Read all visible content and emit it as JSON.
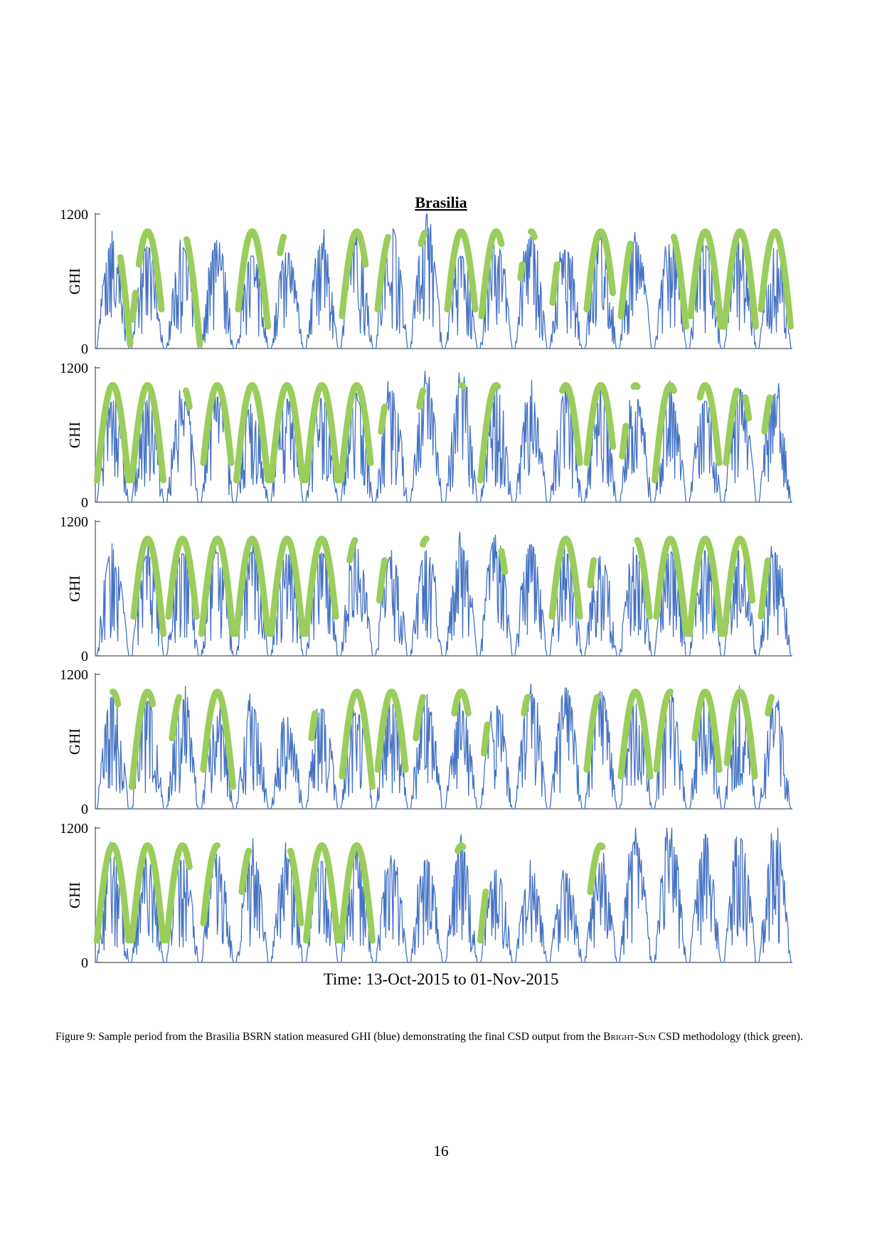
{
  "figure": {
    "title": "Brasilia",
    "xlabel": "Time: 13-Oct-2015 to 01-Nov-2015",
    "colors": {
      "ghi": "#4472C4",
      "csd": "#9ACD5C",
      "axis": "#555555"
    }
  },
  "caption": {
    "label": "Figure 9:",
    "text_before": "Sample period from the Brasilia BSRN station measured GHI (blue) demonstrating the final CSD output from the",
    "method_name": "Bright-Sun",
    "text_after": "CSD methodology (thick green)."
  },
  "page_number": "16",
  "chart_data": [
    {
      "type": "line",
      "ylabel": "GHI",
      "ylim": [
        0,
        1200
      ],
      "yticks": [
        0,
        1200
      ],
      "grid": false,
      "days": 20,
      "series_names": [
        "measured GHI",
        "CSD output"
      ],
      "day_peaks": [
        1020,
        970,
        960,
        1030,
        880,
        920,
        1000,
        990,
        1150,
        1170,
        880,
        1010,
        1060,
        940,
        1040,
        1020,
        1000,
        980,
        1010,
        960
      ],
      "csd_days": [
        {
          "spans": [
            [
              0.72,
              1
            ]
          ]
        },
        {
          "spans": [
            [
              0.07,
              0.15
            ],
            [
              0.25,
              0.9
            ]
          ]
        },
        {
          "spans": [
            [
              0.62,
              1
            ]
          ]
        },
        {
          "spans": []
        },
        {
          "spans": [
            [
              0.1,
              0.95
            ]
          ]
        },
        {
          "spans": [
            [
              0.3,
              0.4
            ]
          ]
        },
        {
          "spans": []
        },
        {
          "spans": [
            [
              0.08,
              0.75
            ]
          ]
        },
        {
          "spans": [
            [
              0.1,
              0.4
            ]
          ]
        },
        {
          "spans": [
            [
              0.35,
              0.45
            ]
          ]
        },
        {
          "spans": [
            [
              0.1,
              0.9
            ]
          ]
        },
        {
          "spans": [
            [
              0.08,
              0.65
            ]
          ]
        },
        {
          "spans": [
            [
              0.2,
              0.25
            ],
            [
              0.5,
              0.6
            ]
          ]
        },
        {
          "spans": [
            [
              0.12,
              0.25
            ]
          ]
        },
        {
          "spans": [
            [
              0.1,
              0.85
            ]
          ]
        },
        {
          "spans": [
            [
              0.08,
              0.35
            ]
          ]
        },
        {
          "spans": [
            [
              0.6,
              0.95
            ]
          ]
        },
        {
          "spans": [
            [
              0.08,
              0.95
            ]
          ]
        },
        {
          "spans": [
            [
              0.05,
              0.95
            ]
          ]
        },
        {
          "spans": [
            [
              0.1,
              0.95
            ]
          ]
        }
      ]
    },
    {
      "type": "line",
      "ylabel": "GHI",
      "ylim": [
        0,
        1200
      ],
      "yticks": [
        0,
        1200
      ],
      "grid": false,
      "days": 20,
      "series_names": [
        "measured GHI",
        "CSD output"
      ],
      "day_peaks": [
        960,
        970,
        980,
        1000,
        940,
        980,
        990,
        970,
        1060,
        1130,
        1120,
        990,
        1010,
        1050,
        980,
        1000,
        990,
        960,
        1070,
        1030
      ],
      "csd_days": [
        {
          "spans": [
            [
              0.05,
              0.95
            ]
          ]
        },
        {
          "spans": [
            [
              0.05,
              0.95
            ]
          ]
        },
        {
          "spans": [
            [
              0.6,
              0.7
            ]
          ]
        },
        {
          "spans": [
            [
              0.1,
              0.9
            ]
          ]
        },
        {
          "spans": [
            [
              0.05,
              0.95
            ]
          ]
        },
        {
          "spans": [
            [
              0.05,
              0.95
            ]
          ]
        },
        {
          "spans": [
            [
              0.05,
              0.95
            ]
          ]
        },
        {
          "spans": [
            [
              0.05,
              0.9
            ]
          ]
        },
        {
          "spans": [
            [
              0.2,
              0.3
            ]
          ]
        },
        {
          "spans": [
            [
              0.3,
              0.4
            ]
          ]
        },
        {
          "spans": [
            [
              0.5,
              0.55
            ]
          ]
        },
        {
          "spans": [
            [
              0.05,
              0.55
            ]
          ]
        },
        {
          "spans": []
        },
        {
          "spans": [
            [
              0.4,
              0.9
            ]
          ]
        },
        {
          "spans": [
            [
              0.1,
              0.85
            ]
          ]
        },
        {
          "spans": [
            [
              0.12,
              0.22
            ],
            [
              0.45,
              0.55
            ]
          ]
        },
        {
          "spans": [
            [
              0.05,
              0.6
            ]
          ]
        },
        {
          "spans": [
            [
              0.35,
              0.9
            ]
          ]
        },
        {
          "spans": [
            [
              0.1,
              0.4
            ],
            [
              0.65,
              0.75
            ]
          ]
        },
        {
          "spans": [
            [
              0.2,
              0.35
            ]
          ]
        }
      ]
    },
    {
      "type": "line",
      "ylabel": "GHI",
      "ylim": [
        0,
        1200
      ],
      "yticks": [
        0,
        1200
      ],
      "grid": false,
      "days": 20,
      "series_names": [
        "measured GHI",
        "CSD output"
      ],
      "day_peaks": [
        1010,
        960,
        970,
        980,
        990,
        970,
        980,
        1020,
        950,
        1000,
        1030,
        1150,
        1060,
        980,
        950,
        960,
        990,
        1000,
        1010,
        980
      ],
      "csd_days": [
        {
          "spans": []
        },
        {
          "spans": [
            [
              0.1,
              0.95
            ]
          ]
        },
        {
          "spans": [
            [
              0.1,
              0.9
            ]
          ]
        },
        {
          "spans": [
            [
              0.05,
              0.95
            ]
          ]
        },
        {
          "spans": [
            [
              0.05,
              0.95
            ]
          ]
        },
        {
          "spans": [
            [
              0.05,
              0.95
            ]
          ]
        },
        {
          "spans": [
            [
              0.05,
              0.9
            ]
          ]
        },
        {
          "spans": [
            [
              0.3,
              0.45
            ]
          ]
        },
        {
          "spans": [
            [
              0.15,
              0.3
            ]
          ]
        },
        {
          "spans": [
            [
              0.4,
              0.5
            ]
          ]
        },
        {
          "spans": []
        },
        {
          "spans": [
            [
              0.65,
              0.75
            ]
          ]
        },
        {
          "spans": []
        },
        {
          "spans": [
            [
              0.1,
              0.9
            ]
          ]
        },
        {
          "spans": [
            [
              0.2,
              0.3
            ]
          ]
        },
        {
          "spans": [
            [
              0.55,
              0.9
            ]
          ]
        },
        {
          "spans": [
            [
              0.1,
              0.95
            ]
          ]
        },
        {
          "spans": [
            [
              0.05,
              0.95
            ]
          ]
        },
        {
          "spans": [
            [
              0.05,
              0.85
            ]
          ]
        },
        {
          "spans": [
            [
              0.1,
              0.3
            ]
          ]
        }
      ]
    },
    {
      "type": "line",
      "ylabel": "GHI",
      "ylim": [
        0,
        1200
      ],
      "yticks": [
        0,
        1200
      ],
      "grid": false,
      "days": 20,
      "series_names": [
        "measured GHI",
        "CSD output"
      ],
      "day_peaks": [
        1070,
        1020,
        1040,
        880,
        970,
        820,
        950,
        920,
        1000,
        980,
        940,
        980,
        1100,
        1150,
        1120,
        1000,
        1040,
        1070,
        1060,
        980
      ],
      "csd_days": [
        {
          "spans": [
            [
              0.5,
              0.65
            ]
          ]
        },
        {
          "spans": [
            [
              0.05,
              0.65
            ]
          ]
        },
        {
          "spans": [
            [
              0.2,
              0.4
            ]
          ]
        },
        {
          "spans": [
            [
              0.1,
              0.95
            ]
          ]
        },
        {
          "spans": []
        },
        {
          "spans": []
        },
        {
          "spans": [
            [
              0.2,
              0.3
            ]
          ]
        },
        {
          "spans": [
            [
              0.08,
              0.95
            ]
          ]
        },
        {
          "spans": [
            [
              0.1,
              0.9
            ]
          ]
        },
        {
          "spans": [
            [
              0.2,
              0.4
            ]
          ]
        },
        {
          "spans": [
            [
              0.3,
              0.7
            ]
          ]
        },
        {
          "spans": [
            [
              0.15,
              0.25
            ]
          ]
        },
        {
          "spans": [
            [
              0.3,
              0.4
            ]
          ]
        },
        {
          "spans": []
        },
        {
          "spans": [
            [
              0.1,
              0.4
            ]
          ]
        },
        {
          "spans": [
            [
              0.08,
              0.92
            ]
          ]
        },
        {
          "spans": [
            [
              0.1,
              0.5
            ]
          ]
        },
        {
          "spans": [
            [
              0.2,
              0.9
            ]
          ]
        },
        {
          "spans": [
            [
              0.12,
              0.92
            ]
          ]
        },
        {
          "spans": [
            [
              0.3,
              0.4
            ]
          ]
        }
      ]
    },
    {
      "type": "line",
      "ylabel": "GHI",
      "ylim": [
        0,
        1200
      ],
      "yticks": [
        0,
        1200
      ],
      "grid": false,
      "days": 20,
      "series_names": [
        "measured GHI",
        "CSD output"
      ],
      "day_peaks": [
        1010,
        970,
        980,
        1030,
        1050,
        990,
        960,
        1040,
        950,
        980,
        1100,
        880,
        830,
        850,
        950,
        1160,
        1170,
        1120,
        1180,
        1170
      ],
      "csd_days": [
        {
          "spans": [
            [
              0.05,
              0.95
            ]
          ]
        },
        {
          "spans": [
            [
              0.05,
              0.95
            ]
          ]
        },
        {
          "spans": [
            [
              0.05,
              0.7
            ]
          ]
        },
        {
          "spans": [
            [
              0.1,
              0.5
            ]
          ]
        },
        {
          "spans": [
            [
              0.2,
              0.4
            ]
          ]
        },
        {
          "spans": [
            [
              0.6,
              0.9
            ]
          ]
        },
        {
          "spans": [
            [
              0.05,
              0.95
            ]
          ]
        },
        {
          "spans": [
            [
              0.05,
              0.95
            ]
          ]
        },
        {
          "spans": []
        },
        {
          "spans": []
        },
        {
          "spans": [
            [
              0.4,
              0.55
            ]
          ]
        },
        {
          "spans": [
            [
              0.05,
              0.2
            ]
          ]
        },
        {
          "spans": []
        },
        {
          "spans": []
        },
        {
          "spans": [
            [
              0.2,
              0.55
            ]
          ]
        },
        {
          "spans": []
        },
        {
          "spans": []
        },
        {
          "spans": []
        },
        {
          "spans": []
        },
        {
          "spans": []
        }
      ]
    }
  ]
}
